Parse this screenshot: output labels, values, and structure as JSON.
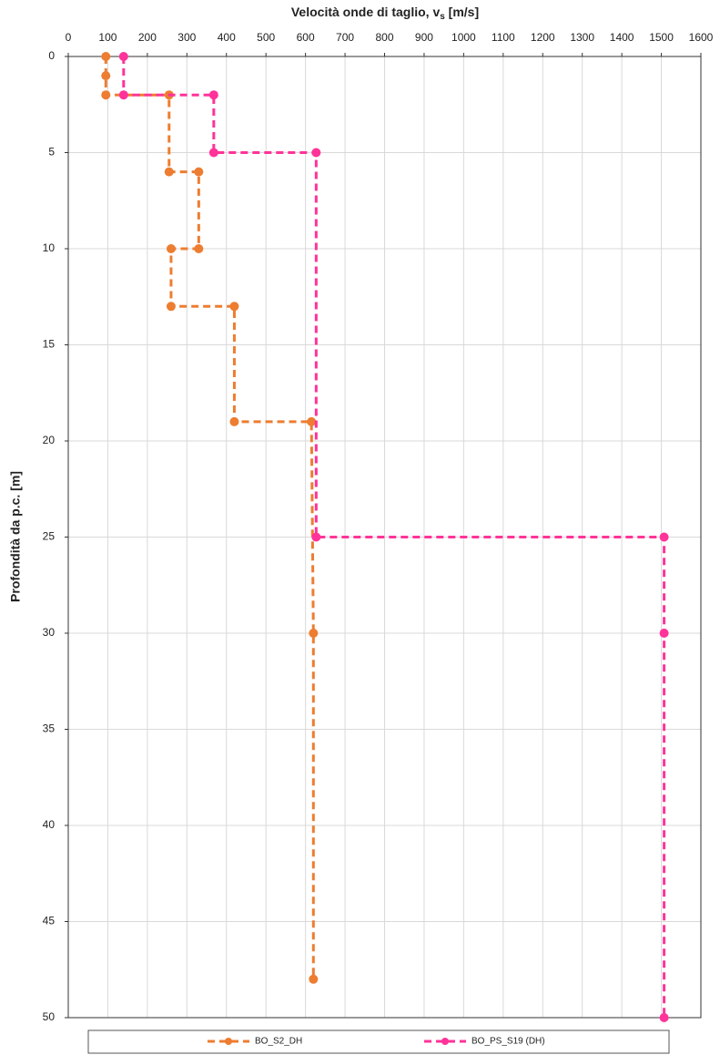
{
  "chart_data": {
    "type": "line",
    "x_label": [
      "Velocità onde di taglio, v",
      "s",
      " [m/s]"
    ],
    "y_label": "Profondità da p.c. [m]",
    "xlim": [
      0,
      1600
    ],
    "xticks": [
      0,
      100,
      200,
      300,
      400,
      500,
      600,
      700,
      800,
      900,
      1000,
      1100,
      1200,
      1300,
      1400,
      1500,
      1600
    ],
    "ylim": [
      0,
      50
    ],
    "yticks": [
      0,
      5,
      10,
      15,
      20,
      25,
      30,
      35,
      40,
      45,
      50
    ],
    "y_inverted": true,
    "grid": true,
    "legend": "bottom",
    "series": [
      {
        "name": "BO_S2_DH",
        "color": "#ed7d31",
        "x": [
          95,
          95,
          95,
          255,
          255,
          330,
          330,
          260,
          260,
          420,
          420,
          615,
          620,
          620
        ],
        "values": [
          0,
          1,
          2,
          2,
          6,
          6,
          10,
          10,
          13,
          13,
          19,
          19,
          30,
          48
        ]
      },
      {
        "name": "BO_PS_S19 (DH)",
        "color": "#ff3399",
        "x": [
          140,
          140,
          368,
          368,
          627,
          627,
          1507,
          1507,
          1507
        ],
        "values": [
          0,
          2,
          2,
          5,
          5,
          25,
          25,
          30,
          50
        ]
      }
    ]
  }
}
